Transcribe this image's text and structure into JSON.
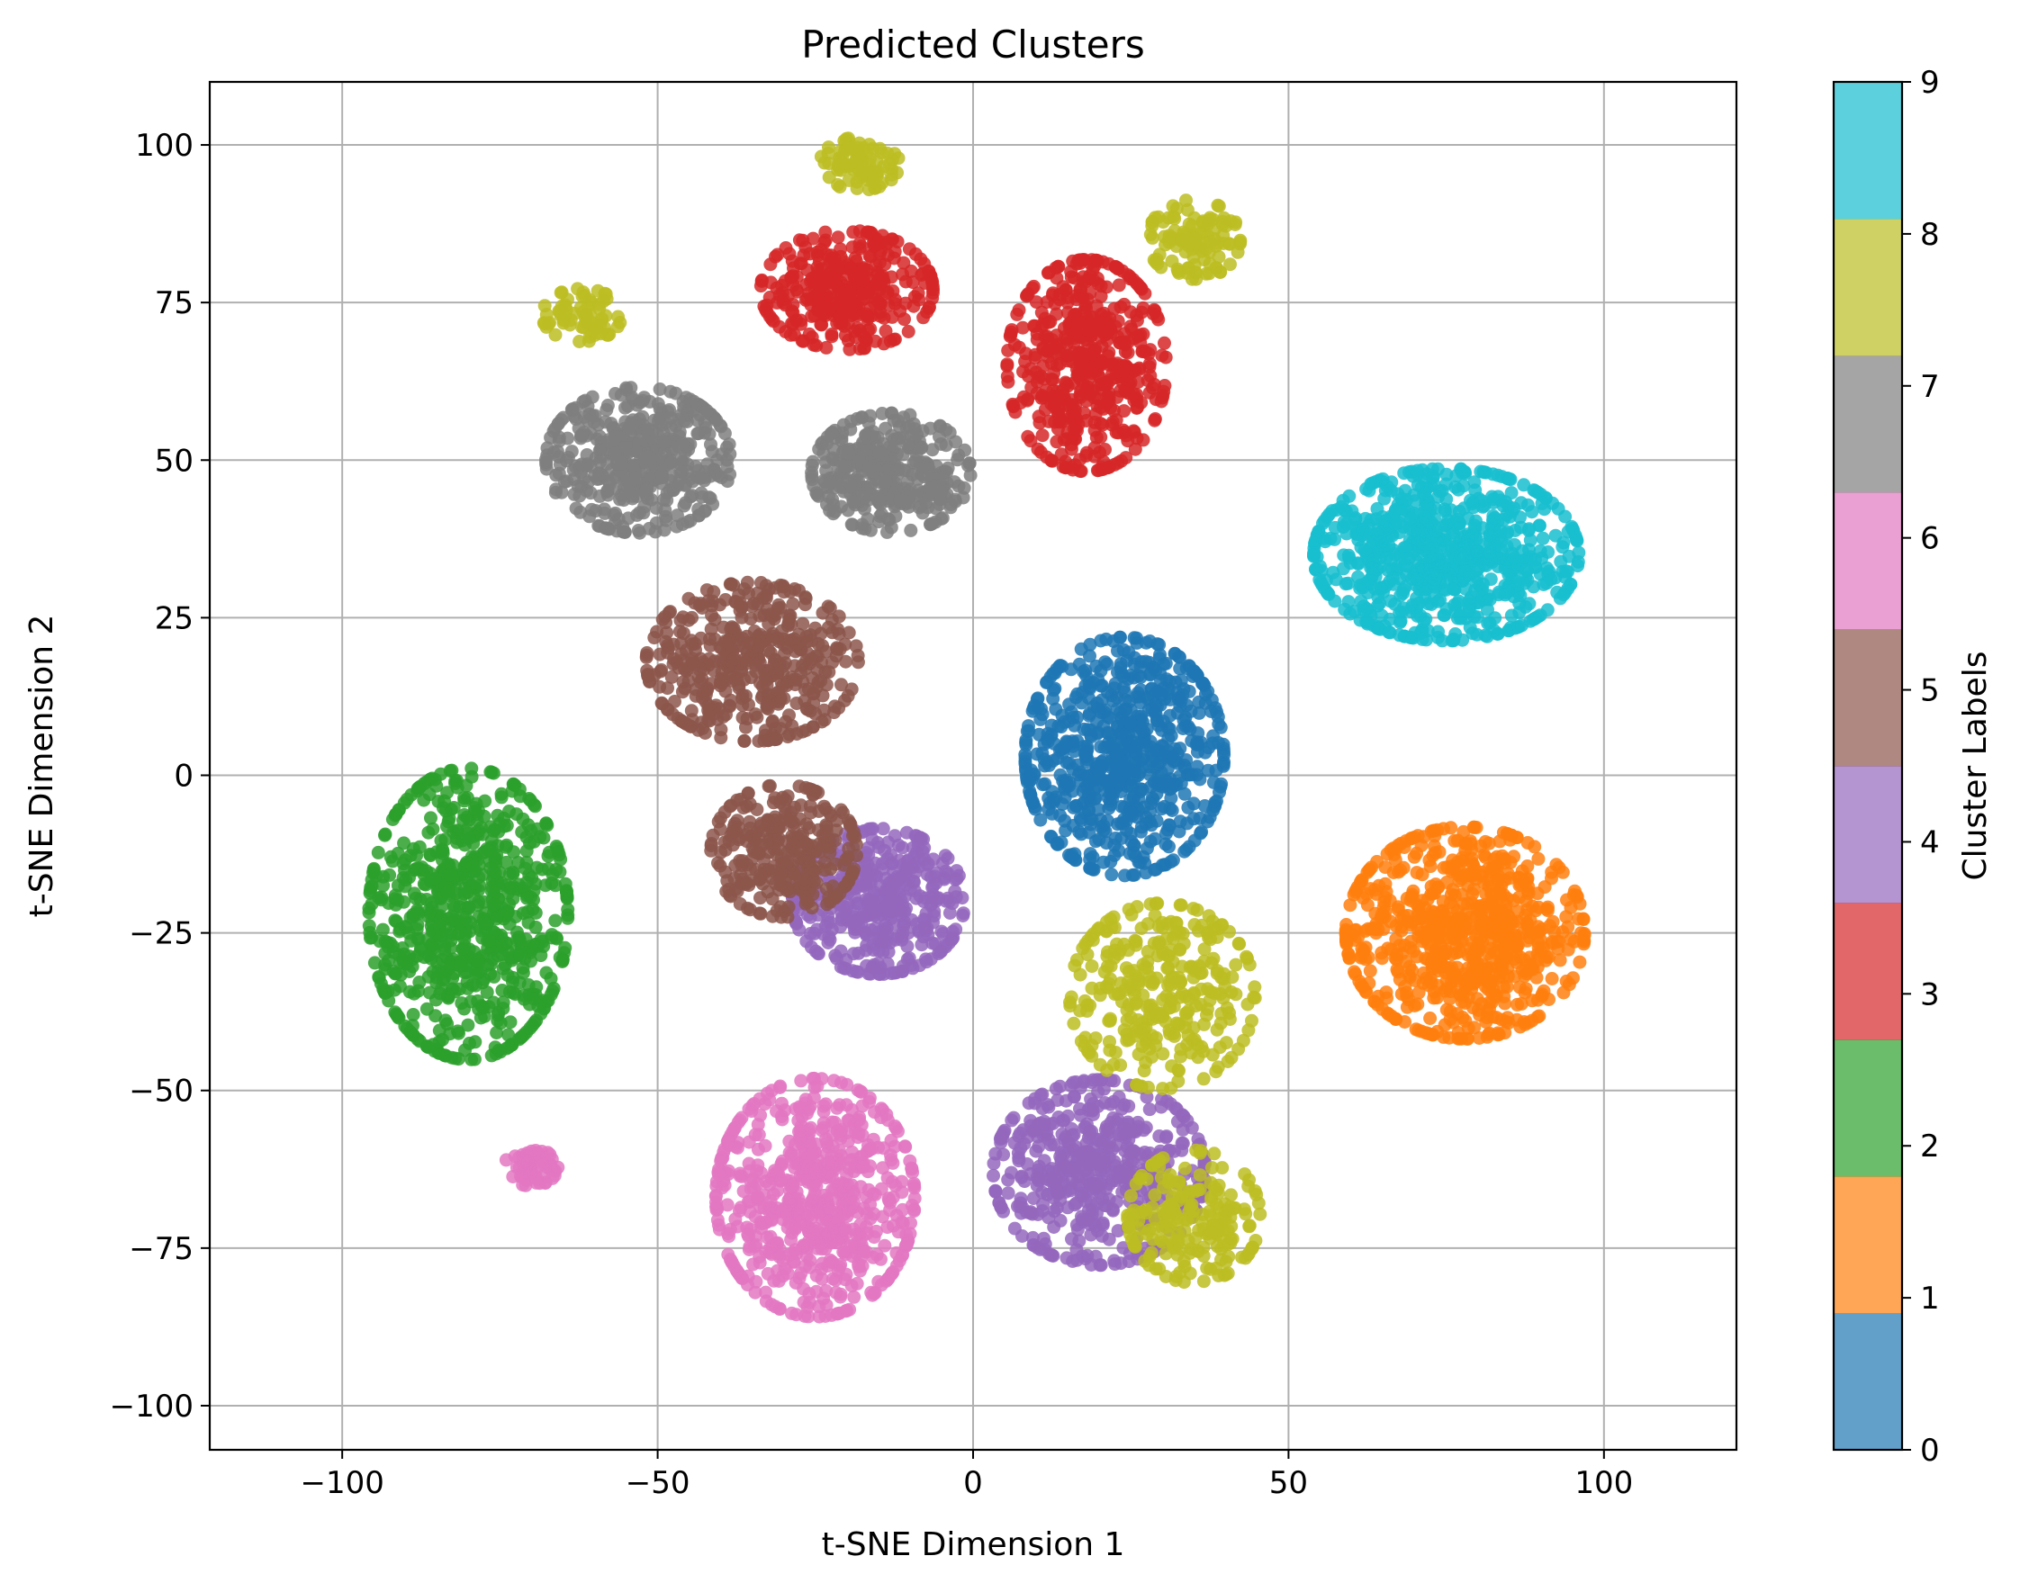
{
  "chart_data": {
    "type": "scatter",
    "title": "Predicted Clusters",
    "xlabel": "t-SNE Dimension 1",
    "ylabel": "t-SNE Dimension 2",
    "xlim": [
      -121,
      121
    ],
    "ylim": [
      -107,
      110
    ],
    "xticks": [
      -100,
      -50,
      0,
      50,
      100
    ],
    "yticks": [
      -100,
      -75,
      -50,
      -25,
      0,
      25,
      50,
      75,
      100
    ],
    "xtick_labels": [
      "−100",
      "−50",
      "0",
      "50",
      "100"
    ],
    "ytick_labels": [
      "−100",
      "−75",
      "−50",
      "−25",
      "0",
      "25",
      "50",
      "75",
      "100"
    ],
    "grid": true,
    "colorbar": {
      "label": "Cluster Labels",
      "range": [
        0,
        9
      ],
      "ticks": [
        0,
        1,
        2,
        3,
        4,
        5,
        6,
        7,
        8,
        9
      ],
      "colors": [
        "#1f77b4",
        "#ff7f0e",
        "#2ca02c",
        "#d62728",
        "#9467bd",
        "#8c564b",
        "#e377c2",
        "#7f7f7f",
        "#bcbd22",
        "#17becf"
      ]
    },
    "clusters": [
      {
        "label": 0,
        "color": "#1f77b4",
        "center": [
          24,
          3
        ],
        "spread": [
          15,
          18
        ],
        "count": 700
      },
      {
        "label": 1,
        "color": "#ff7f0e",
        "center": [
          78,
          -25
        ],
        "spread": [
          18,
          16
        ],
        "count": 750
      },
      {
        "label": 2,
        "color": "#2ca02c",
        "center": [
          -80,
          -22
        ],
        "spread": [
          15,
          22
        ],
        "count": 750
      },
      {
        "label": 3,
        "color": "#d62728",
        "center": [
          -20,
          77
        ],
        "spread": [
          13,
          9
        ],
        "count": 350
      },
      {
        "label": 3,
        "color": "#d62728",
        "center": [
          18,
          65
        ],
        "spread": [
          12,
          16
        ],
        "count": 500
      },
      {
        "label": 4,
        "color": "#9467bd",
        "center": [
          -15,
          -20
        ],
        "spread": [
          13,
          11
        ],
        "count": 420
      },
      {
        "label": 4,
        "color": "#9467bd",
        "center": [
          20,
          -63
        ],
        "spread": [
          16,
          14
        ],
        "count": 520
      },
      {
        "label": 5,
        "color": "#8c564b",
        "center": [
          -35,
          18
        ],
        "spread": [
          16,
          12
        ],
        "count": 450
      },
      {
        "label": 5,
        "color": "#8c564b",
        "center": [
          -30,
          -12
        ],
        "spread": [
          11,
          10
        ],
        "count": 300
      },
      {
        "label": 6,
        "color": "#e377c2",
        "center": [
          -25,
          -67
        ],
        "spread": [
          15,
          18
        ],
        "count": 650
      },
      {
        "label": 6,
        "color": "#e377c2",
        "center": [
          -70,
          -62
        ],
        "spread": [
          4,
          3
        ],
        "count": 60
      },
      {
        "label": 7,
        "color": "#7f7f7f",
        "center": [
          -53,
          50
        ],
        "spread": [
          14,
          11
        ],
        "count": 450
      },
      {
        "label": 7,
        "color": "#7f7f7f",
        "center": [
          -13,
          48
        ],
        "spread": [
          12,
          9
        ],
        "count": 350
      },
      {
        "label": 8,
        "color": "#bcbd22",
        "center": [
          -18,
          97
        ],
        "spread": [
          6,
          4
        ],
        "count": 90
      },
      {
        "label": 8,
        "color": "#bcbd22",
        "center": [
          35,
          85
        ],
        "spread": [
          7,
          6
        ],
        "count": 110
      },
      {
        "label": 8,
        "color": "#bcbd22",
        "center": [
          -62,
          73
        ],
        "spread": [
          6,
          4
        ],
        "count": 70
      },
      {
        "label": 8,
        "color": "#bcbd22",
        "center": [
          30,
          -35
        ],
        "spread": [
          14,
          14
        ],
        "count": 320
      },
      {
        "label": 8,
        "color": "#bcbd22",
        "center": [
          35,
          -70
        ],
        "spread": [
          10,
          10
        ],
        "count": 200
      },
      {
        "label": 9,
        "color": "#17becf",
        "center": [
          75,
          35
        ],
        "spread": [
          20,
          13
        ],
        "count": 750
      }
    ]
  }
}
